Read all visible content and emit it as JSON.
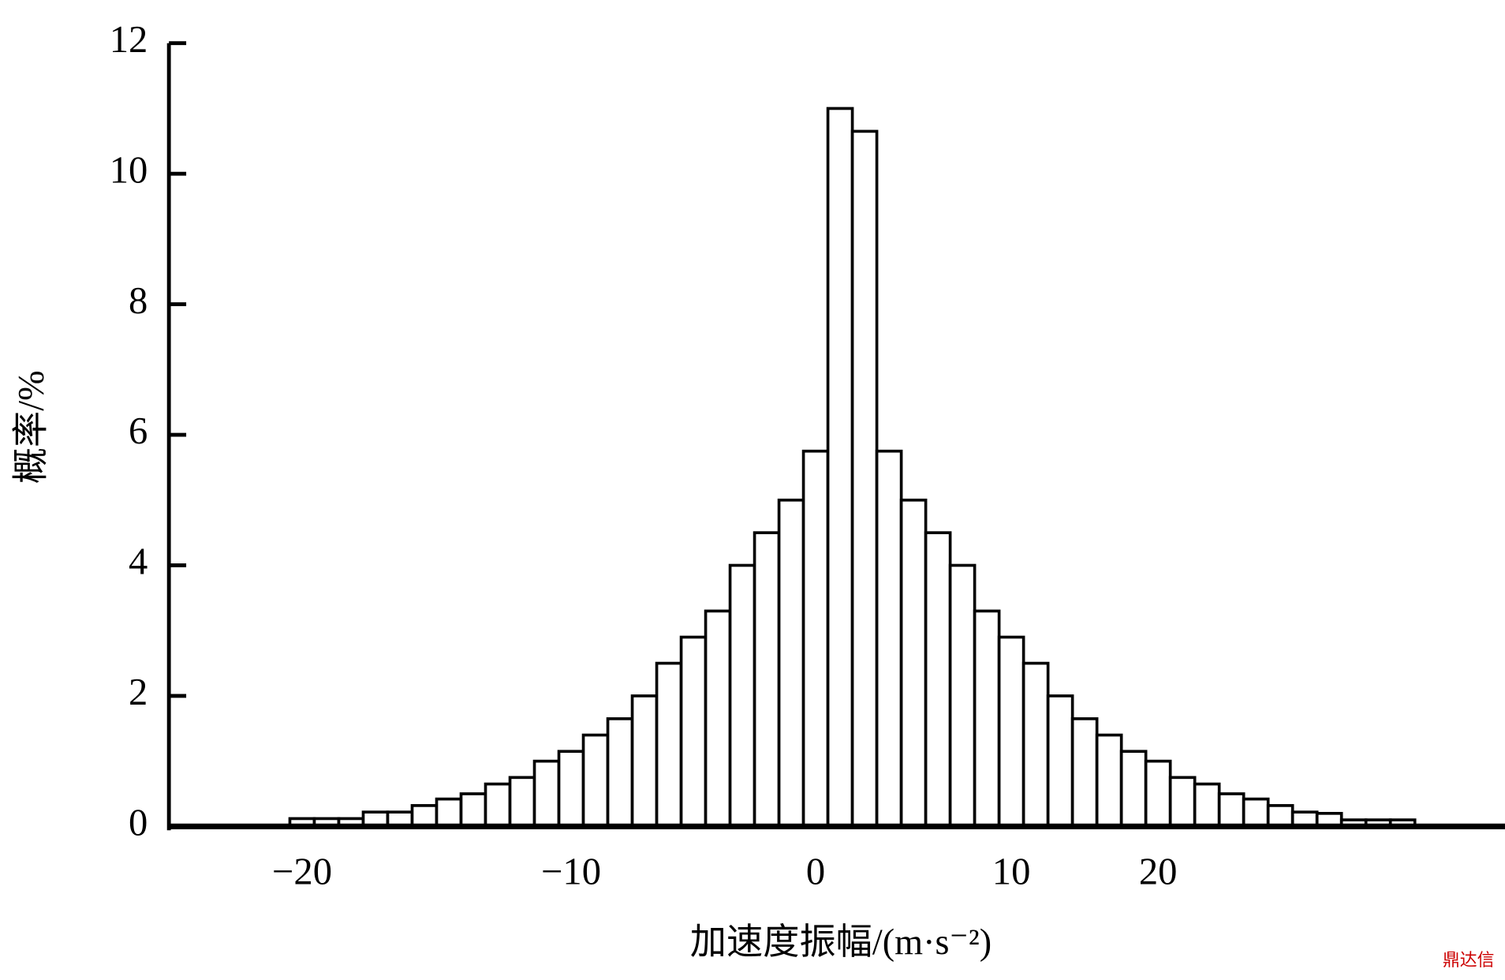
{
  "chart_data": {
    "type": "bar",
    "y_label": "概率/%",
    "x_label": "加速度振幅/(m·s⁻²)",
    "watermark": "鼎达信",
    "categories": [
      "−20",
      null,
      null,
      null,
      null,
      null,
      null,
      null,
      null,
      null,
      null,
      "−10",
      null,
      null,
      null,
      null,
      null,
      null,
      null,
      null,
      null,
      "0",
      null,
      null,
      null,
      null,
      null,
      null,
      null,
      "10",
      null,
      null,
      null,
      null,
      null,
      "20",
      null,
      null,
      null,
      null,
      null,
      null,
      null,
      null,
      null,
      null
    ],
    "values": [
      0.12,
      0.12,
      0.12,
      0.22,
      0.22,
      0.32,
      0.42,
      0.5,
      0.65,
      0.75,
      1.0,
      1.15,
      1.4,
      1.65,
      2.0,
      2.5,
      2.9,
      3.3,
      4.0,
      4.5,
      5.0,
      5.75,
      11.0,
      10.65,
      5.75,
      5.0,
      4.5,
      4.0,
      3.3,
      2.9,
      2.5,
      2.0,
      1.65,
      1.4,
      1.15,
      1.0,
      0.75,
      0.65,
      0.5,
      0.42,
      0.32,
      0.22,
      0.2,
      0.1,
      0.1,
      0.1
    ],
    "color": "#ffffff",
    "ylim": [
      0,
      12
    ],
    "yticks": [
      0,
      2,
      4,
      6,
      8,
      10,
      12
    ]
  }
}
